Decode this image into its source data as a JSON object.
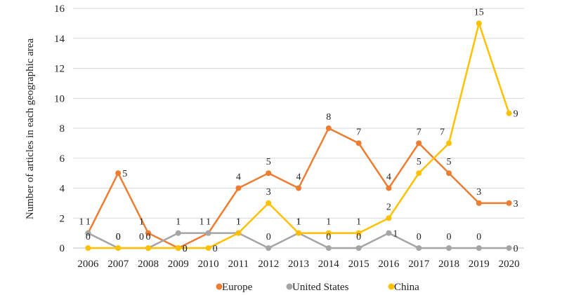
{
  "chart_data": {
    "type": "line",
    "title": "",
    "xlabel": "",
    "ylabel": "Number of articles in each geographic area",
    "categories": [
      "2006",
      "2007",
      "2008",
      "2009",
      "2010",
      "2011",
      "2012",
      "2013",
      "2014",
      "2015",
      "2016",
      "2017",
      "2018",
      "2019",
      "2020"
    ],
    "ylim": [
      0,
      16
    ],
    "yticks": [
      "0",
      "2",
      "4",
      "6",
      "8",
      "10",
      "12",
      "14",
      "16"
    ],
    "grid": "horizontal",
    "legend_position": "bottom",
    "series": [
      {
        "name": "Europe",
        "color": "#ED7D31",
        "values": [
          1,
          5,
          1,
          0,
          1,
          4,
          5,
          4,
          8,
          7,
          4,
          7,
          5,
          3,
          3
        ]
      },
      {
        "name": "United States",
        "color": "#A5A5A5",
        "values": [
          1,
          0,
          0,
          1,
          1,
          1,
          0,
          1,
          0,
          0,
          1,
          0,
          0,
          0,
          0
        ]
      },
      {
        "name": "China",
        "color": "#FFC000",
        "values": [
          0,
          0,
          0,
          0,
          0,
          1,
          3,
          1,
          1,
          1,
          2,
          5,
          7,
          15,
          9
        ]
      }
    ]
  }
}
